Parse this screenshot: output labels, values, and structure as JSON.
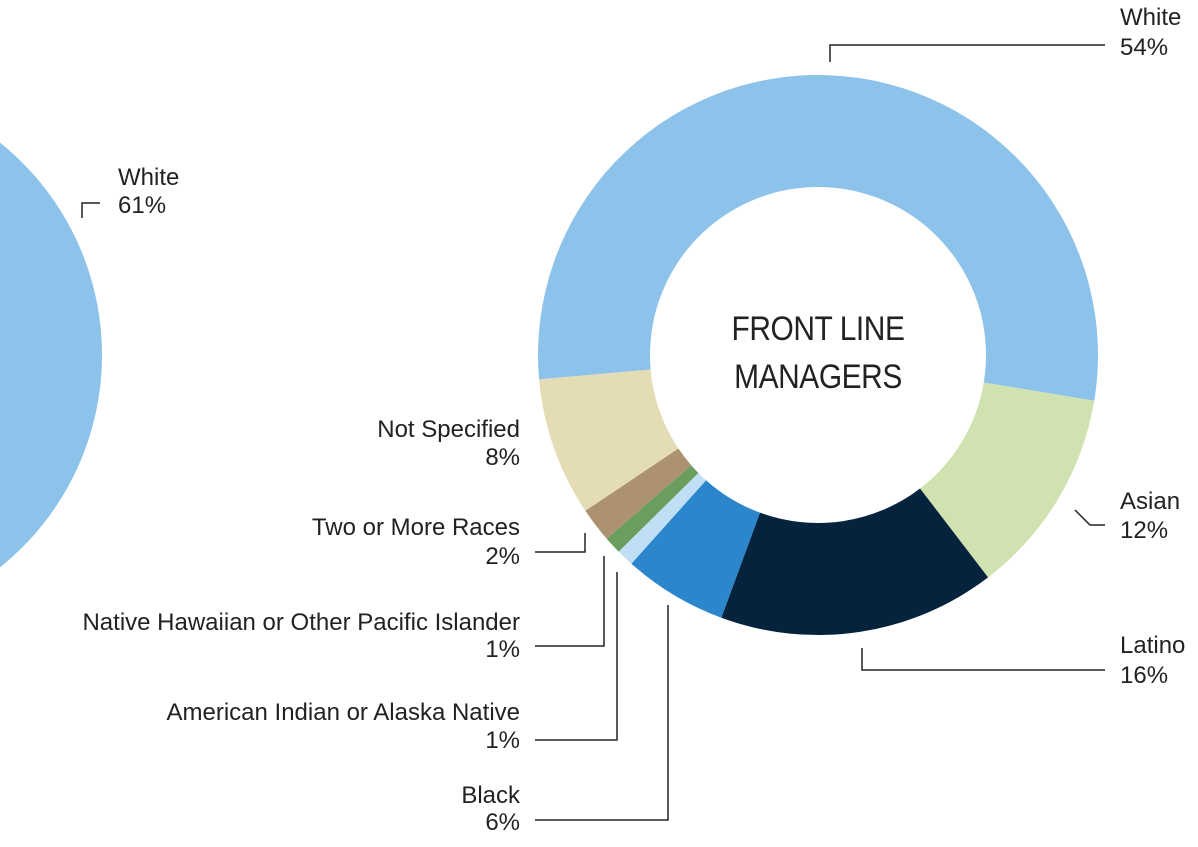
{
  "chart_data": [
    {
      "type": "pie",
      "categories": [
        "White"
      ],
      "values": [
        61
      ],
      "value_labels": [
        "61%"
      ],
      "colors": [
        "#8dc3ea"
      ]
    },
    {
      "type": "donut",
      "title": "FRONT LINE MANAGERS",
      "categories": [
        "White",
        "Asian",
        "Latino",
        "Black",
        "American Indian or Alaska Native",
        "Native Hawaiian or Other Pacific Islander",
        "Two or More Races",
        "Not Specified"
      ],
      "values": [
        54,
        12,
        16,
        6,
        1,
        1,
        2,
        8
      ],
      "value_labels": [
        "54%",
        "12%",
        "16%",
        "6%",
        "1%",
        "1%",
        "2%",
        "8%"
      ],
      "colors": [
        "#8dc3ea",
        "#d0e2b0",
        "#06233d",
        "#2b86cc",
        "#c0dff5",
        "#6a9e5f",
        "#ad9270",
        "#e4dcb4"
      ]
    }
  ]
}
